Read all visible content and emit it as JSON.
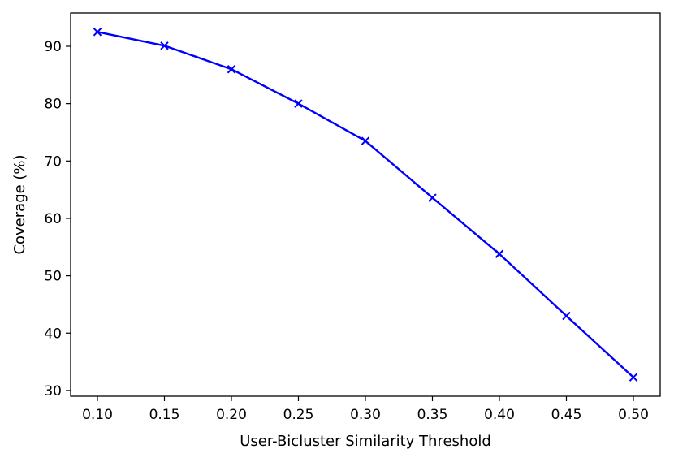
{
  "chart_data": {
    "type": "line",
    "title": "",
    "xlabel": "User-Bicluster Similarity Threshold",
    "ylabel": "Coverage (%)",
    "x": [
      0.1,
      0.15,
      0.2,
      0.25,
      0.3,
      0.35,
      0.4,
      0.45,
      0.5
    ],
    "x_tick_labels": [
      "0.10",
      "0.15",
      "0.20",
      "0.25",
      "0.30",
      "0.35",
      "0.40",
      "0.45",
      "0.50"
    ],
    "y_ticks": [
      30,
      40,
      50,
      60,
      70,
      80,
      90
    ],
    "y_tick_labels": [
      "30",
      "40",
      "50",
      "60",
      "70",
      "80",
      "90"
    ],
    "xlim": [
      0.08,
      0.52
    ],
    "ylim": [
      29.0,
      95.8
    ],
    "grid": false,
    "legend": "none",
    "series": [
      {
        "color": "#0000ff",
        "marker": "x",
        "values": [
          92.5,
          90.1,
          86.0,
          80.0,
          73.5,
          63.6,
          53.8,
          43.0,
          32.3
        ]
      }
    ]
  }
}
